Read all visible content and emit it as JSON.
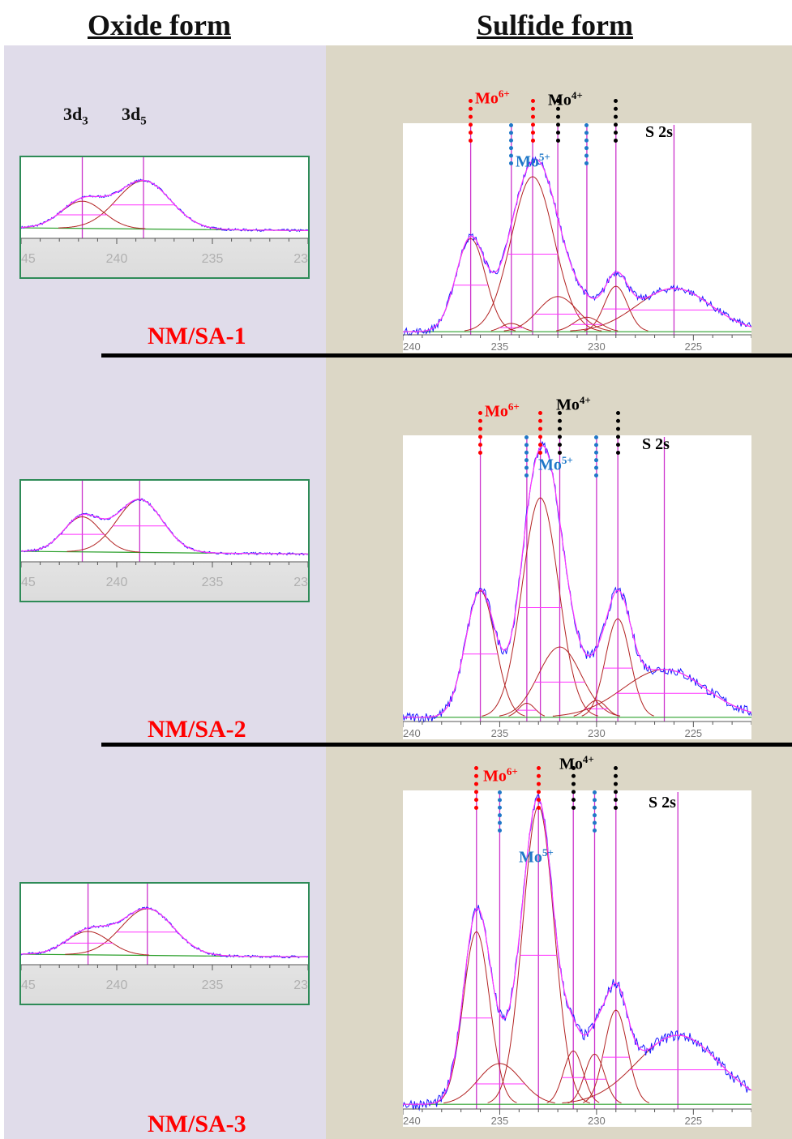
{
  "headers": {
    "oxide": "Oxide form",
    "sulfide": "Sulfide form"
  },
  "colors": {
    "oxide_bg": "#e0dcea",
    "sulfide_bg": "#dcd7c6",
    "sample_label": "#ff0000",
    "raw": "#1a1aff",
    "envelope": "#ff33ff",
    "component": "#b22222",
    "baseline": "#2ca02c",
    "marker": "#cc33cc",
    "mo6": "#ff0000",
    "mo5": "#1f78c8",
    "mo4": "#000000"
  },
  "peak_labels": {
    "d3_main": "3d",
    "d3_sub": "3",
    "d5_main": "3d",
    "d5_sub": "5"
  },
  "state_labels": {
    "mo6": "Mo",
    "mo6_sup": "6+",
    "mo5": "Mo",
    "mo5_sup": "5+",
    "mo4": "Mo",
    "mo4_sup": "4+",
    "s2s": "S 2s"
  },
  "samples": [
    {
      "name": "NM/SA-1"
    },
    {
      "name": "NM/SA-2"
    },
    {
      "name": "NM/SA-3"
    }
  ],
  "chart_data": [
    {
      "type": "line",
      "panel": "oxide",
      "sample": "NM/SA-1",
      "xlim": [
        245,
        230
      ],
      "x_ticks": [
        "45",
        "240",
        "235",
        "23"
      ],
      "peaks": [
        {
          "center": 238.6,
          "fwhm": 3.3,
          "height": 0.62
        },
        {
          "center": 241.8,
          "fwhm": 2.6,
          "height": 0.35
        }
      ],
      "markers": [
        241.8,
        238.6
      ]
    },
    {
      "type": "line",
      "panel": "sulfide",
      "sample": "NM/SA-1",
      "xlim": [
        240,
        222
      ],
      "x_ticks": [
        "240",
        "235",
        "230",
        "225",
        "22"
      ],
      "peaks": [
        {
          "center": 236.5,
          "fwhm": 1.8,
          "height": 0.45
        },
        {
          "center": 234.4,
          "fwhm": 1.2,
          "height": 0.04
        },
        {
          "center": 233.3,
          "fwhm": 2.6,
          "height": 0.75
        },
        {
          "center": 232.0,
          "fwhm": 2.4,
          "height": 0.17
        },
        {
          "center": 230.5,
          "fwhm": 1.6,
          "height": 0.07
        },
        {
          "center": 229.0,
          "fwhm": 1.4,
          "height": 0.22
        },
        {
          "center": 226.0,
          "fwhm": 4.5,
          "height": 0.21
        }
      ],
      "markers": [
        236.5,
        234.4,
        233.3,
        232.0,
        230.5,
        229.0,
        226.0
      ],
      "dashed_mo6": [
        236.5,
        233.3
      ],
      "dashed_mo5": [
        234.4,
        230.5
      ],
      "dashed_mo4": [
        232.0,
        229.0
      ]
    },
    {
      "type": "line",
      "panel": "oxide",
      "sample": "NM/SA-2",
      "xlim": [
        245,
        230
      ],
      "x_ticks": [
        "45",
        "240",
        "235",
        "23"
      ],
      "peaks": [
        {
          "center": 238.8,
          "fwhm": 2.8,
          "height": 0.68
        },
        {
          "center": 241.8,
          "fwhm": 2.3,
          "height": 0.45
        }
      ],
      "markers": [
        241.8,
        238.8
      ]
    },
    {
      "type": "line",
      "panel": "sulfide",
      "sample": "NM/SA-2",
      "xlim": [
        240,
        222
      ],
      "x_ticks": [
        "240",
        "235",
        "230",
        "225",
        "22"
      ],
      "peaks": [
        {
          "center": 236.0,
          "fwhm": 1.8,
          "height": 0.45
        },
        {
          "center": 233.6,
          "fwhm": 1.0,
          "height": 0.05
        },
        {
          "center": 232.9,
          "fwhm": 2.2,
          "height": 0.78
        },
        {
          "center": 231.9,
          "fwhm": 2.6,
          "height": 0.25
        },
        {
          "center": 230.0,
          "fwhm": 1.2,
          "height": 0.06
        },
        {
          "center": 228.9,
          "fwhm": 1.5,
          "height": 0.35
        },
        {
          "center": 226.5,
          "fwhm": 5.0,
          "height": 0.17
        }
      ],
      "markers": [
        236.0,
        233.6,
        232.9,
        231.9,
        230.0,
        228.9,
        226.5
      ],
      "dashed_mo6": [
        236.0,
        232.9
      ],
      "dashed_mo5": [
        233.6,
        230.0
      ],
      "dashed_mo4": [
        231.9,
        228.9
      ]
    },
    {
      "type": "line",
      "panel": "oxide",
      "sample": "NM/SA-3",
      "xlim": [
        245,
        230
      ],
      "x_ticks": [
        "45",
        "240",
        "235",
        "23"
      ],
      "peaks": [
        {
          "center": 238.4,
          "fwhm": 3.2,
          "height": 0.6
        },
        {
          "center": 241.5,
          "fwhm": 2.6,
          "height": 0.3
        }
      ],
      "markers": [
        241.5,
        238.4
      ]
    },
    {
      "type": "line",
      "panel": "sulfide",
      "sample": "NM/SA-3",
      "xlim": [
        240,
        222
      ],
      "x_ticks": [
        "240",
        "235",
        "230",
        "225",
        "22"
      ],
      "peaks": [
        {
          "center": 236.2,
          "fwhm": 1.6,
          "height": 0.55
        },
        {
          "center": 235.0,
          "fwhm": 2.6,
          "height": 0.13
        },
        {
          "center": 233.0,
          "fwhm": 1.9,
          "height": 0.95
        },
        {
          "center": 231.2,
          "fwhm": 1.2,
          "height": 0.17
        },
        {
          "center": 230.1,
          "fwhm": 1.2,
          "height": 0.16
        },
        {
          "center": 229.0,
          "fwhm": 1.4,
          "height": 0.3
        },
        {
          "center": 225.8,
          "fwhm": 5.0,
          "height": 0.22
        }
      ],
      "markers": [
        236.2,
        235.0,
        233.0,
        231.2,
        230.1,
        229.0,
        225.8
      ],
      "dashed_mo6": [
        236.2,
        233.0
      ],
      "dashed_mo5": [
        235.0,
        230.1
      ],
      "dashed_mo4": [
        231.2,
        229.0
      ]
    }
  ]
}
